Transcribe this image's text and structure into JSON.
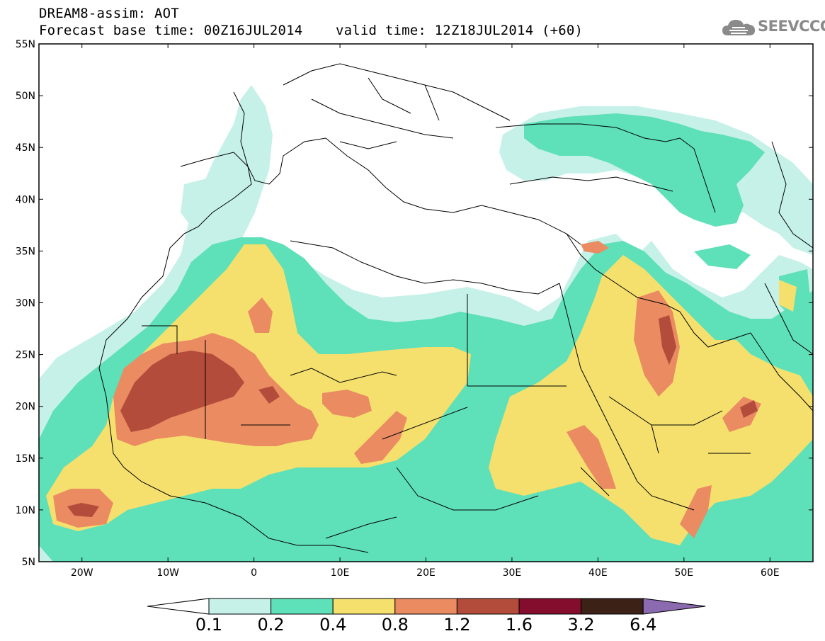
{
  "header": {
    "line1": "DREAM8-assim: AOT",
    "line2": "Forecast base time: 00Z16JUL2014    valid time: 12Z18JUL2014 (+60)"
  },
  "logo": {
    "text": "SEEVCCC",
    "icon": "cloud-icon",
    "color": "#8a8a8a"
  },
  "map": {
    "lon_range": [
      -25,
      65
    ],
    "lat_range": [
      5,
      55
    ],
    "lat_ticks": [
      "55N",
      "50N",
      "45N",
      "40N",
      "35N",
      "30N",
      "25N",
      "20N",
      "15N",
      "10N",
      "5N"
    ],
    "lon_ticks": [
      "20W",
      "10W",
      "0",
      "10E",
      "20E",
      "30E",
      "40E",
      "50E",
      "60E"
    ]
  },
  "colorbar": {
    "levels": [
      "0.1",
      "0.2",
      "0.4",
      "0.8",
      "1.2",
      "1.6",
      "3.2",
      "6.4"
    ],
    "colors": [
      "#ffffff",
      "#c6f1e8",
      "#5ee0b8",
      "#f5e06e",
      "#ea8b62",
      "#b34c3a",
      "#840c2c",
      "#3b2116",
      "#8b6ab0"
    ]
  }
}
